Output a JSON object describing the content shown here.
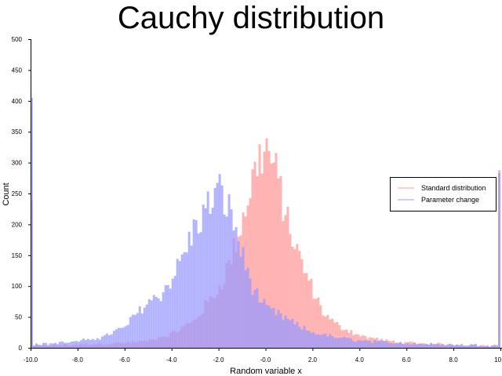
{
  "chart_data": {
    "type": "histogram",
    "title": "Cauchy distribution",
    "xlabel": "Random variable x",
    "ylabel": "Count",
    "xlim": [
      -10,
      10
    ],
    "ylim": [
      0,
      500
    ],
    "bin_width": 0.1,
    "x_ticks": [
      "-10.0",
      "-8.0",
      "-6.0",
      "-4.0",
      "-2.0",
      "-0.0",
      "2.0",
      "4.0",
      "6.0",
      "8.0",
      "10.0"
    ],
    "x_tick_values": [
      -10,
      -8,
      -6,
      -4,
      -2,
      0,
      2,
      4,
      6,
      8,
      10
    ],
    "y_ticks": [
      "0",
      "50",
      "100",
      "150",
      "200",
      "250",
      "300",
      "350",
      "400",
      "450",
      "500"
    ],
    "y_tick_values": [
      0,
      50,
      100,
      150,
      200,
      250,
      300,
      350,
      400,
      450,
      500
    ],
    "legend_position": "right",
    "series": [
      {
        "name": "Standard distribution",
        "color": "#ff9999",
        "opacity": 0.75,
        "bins": [
          [
            -10,
            238
          ],
          [
            9.9,
            288
          ]
        ],
        "profile": [
          [
            -9.9,
            3
          ],
          [
            -8,
            5
          ],
          [
            -6,
            8
          ],
          [
            -5,
            11
          ],
          [
            -4,
            22
          ],
          [
            -3,
            45
          ],
          [
            -2.5,
            70
          ],
          [
            -2,
            95
          ],
          [
            -1.5,
            140
          ],
          [
            -1,
            205
          ],
          [
            -0.6,
            265
          ],
          [
            -0.3,
            305
          ],
          [
            0,
            325
          ],
          [
            0.3,
            300
          ],
          [
            0.6,
            260
          ],
          [
            1,
            195
          ],
          [
            1.5,
            140
          ],
          [
            2,
            95
          ],
          [
            2.5,
            55
          ],
          [
            3,
            38
          ],
          [
            4,
            20
          ],
          [
            5,
            12
          ],
          [
            6,
            8
          ],
          [
            8,
            5
          ],
          [
            9.8,
            3
          ]
        ]
      },
      {
        "name": "Parameter change",
        "color": "#9999ff",
        "opacity": 0.75,
        "bins": [
          [
            -10,
            405
          ],
          [
            9.9,
            283
          ]
        ],
        "profile": [
          [
            -9.9,
            5
          ],
          [
            -8,
            10
          ],
          [
            -7,
            17
          ],
          [
            -6,
            33
          ],
          [
            -5.5,
            55
          ],
          [
            -5,
            75
          ],
          [
            -4.5,
            85
          ],
          [
            -4,
            110
          ],
          [
            -3.5,
            150
          ],
          [
            -3,
            195
          ],
          [
            -2.5,
            225
          ],
          [
            -2,
            255
          ],
          [
            -1.6,
            230
          ],
          [
            -1.2,
            185
          ],
          [
            -1,
            150
          ],
          [
            -0.5,
            95
          ],
          [
            0,
            65
          ],
          [
            0.5,
            55
          ],
          [
            1,
            45
          ],
          [
            1.5,
            33
          ],
          [
            2,
            25
          ],
          [
            3,
            17
          ],
          [
            4,
            12
          ],
          [
            6,
            7
          ],
          [
            8,
            5
          ],
          [
            9.8,
            4
          ]
        ]
      }
    ]
  }
}
